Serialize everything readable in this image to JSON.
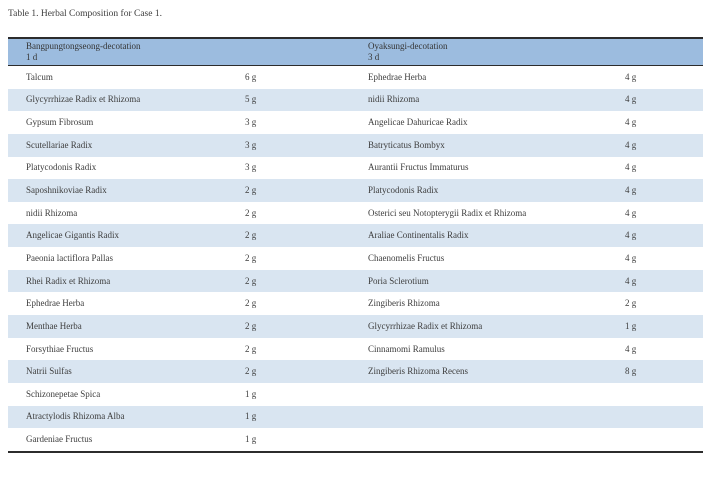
{
  "title": "Table 1. Herbal Composition for Case 1.",
  "table": {
    "header": {
      "left": {
        "name": "Bangpungtongseong-decotation",
        "duration": "1 d"
      },
      "right": {
        "name": "Oyaksungi-decotation",
        "duration": "3 d"
      }
    },
    "rows": [
      {
        "left_name": "Talcum",
        "left_amount": "6 g",
        "right_name": "Ephedrae Herba",
        "right_amount": "4 g"
      },
      {
        "left_name": "Glycyrrhizae Radix et Rhizoma",
        "left_amount": "5 g",
        "right_name": "nidii Rhizoma",
        "right_amount": "4 g"
      },
      {
        "left_name": "Gypsum Fibrosum",
        "left_amount": "3 g",
        "right_name": "Angelicae Dahuricae Radix",
        "right_amount": "4 g"
      },
      {
        "left_name": "Scutellariae Radix",
        "left_amount": "3 g",
        "right_name": "Batryticatus Bombyx",
        "right_amount": "4 g"
      },
      {
        "left_name": "Platycodonis Radix",
        "left_amount": "3 g",
        "right_name": "Aurantii Fructus Immaturus",
        "right_amount": "4 g"
      },
      {
        "left_name": "Saposhnikoviae Radix",
        "left_amount": "2 g",
        "right_name": "Platycodonis Radix",
        "right_amount": "4 g"
      },
      {
        "left_name": "nidii Rhizoma",
        "left_amount": "2 g",
        "right_name": "Osterici seu Notopterygii Radix et Rhizoma",
        "right_amount": "4 g"
      },
      {
        "left_name": "Angelicae Gigantis Radix",
        "left_amount": "2 g",
        "right_name": "Araliae Continentalis Radix",
        "right_amount": "4 g"
      },
      {
        "left_name": "Paeonia lactiflora Pallas",
        "left_amount": "2 g",
        "right_name": "Chaenomelis Fructus",
        "right_amount": "4 g"
      },
      {
        "left_name": "Rhei Radix et Rhizoma",
        "left_amount": "2 g",
        "right_name": "Poria Sclerotium",
        "right_amount": "4 g"
      },
      {
        "left_name": "Ephedrae Herba",
        "left_amount": "2 g",
        "right_name": "Zingiberis Rhizoma",
        "right_amount": "2 g"
      },
      {
        "left_name": "Menthae Herba",
        "left_amount": "2 g",
        "right_name": "Glycyrrhizae Radix et Rhizoma",
        "right_amount": "1 g"
      },
      {
        "left_name": "Forsythiae Fructus",
        "left_amount": "2 g",
        "right_name": "Cinnamomi Ramulus",
        "right_amount": "4 g"
      },
      {
        "left_name": "Natrii Sulfas",
        "left_amount": "2 g",
        "right_name": "Zingiberis Rhizoma Recens",
        "right_amount": "8 g"
      },
      {
        "left_name": "Schizonepetae Spica",
        "left_amount": "1 g",
        "right_name": "",
        "right_amount": ""
      },
      {
        "left_name": "Atractylodis Rhizoma Alba",
        "left_amount": "1 g",
        "right_name": "",
        "right_amount": ""
      },
      {
        "left_name": "Gardeniae Fructus",
        "left_amount": "1 g",
        "right_name": "",
        "right_amount": ""
      }
    ],
    "colors": {
      "header_bg": "#9cbcdf",
      "stripe_bg": "#d9e5f1",
      "border": "#2c2c2c"
    }
  }
}
